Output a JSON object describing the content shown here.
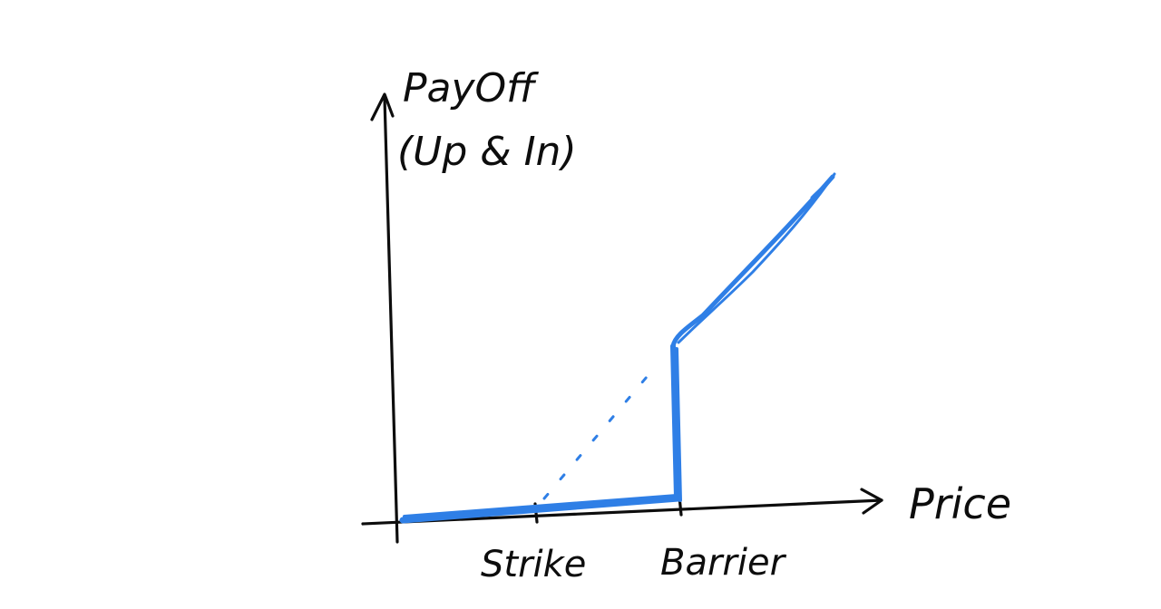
{
  "diagram": {
    "y_axis_label_line1": "PayOff",
    "y_axis_label_line2": "(Up & In)",
    "x_axis_label": "Price",
    "ticks": {
      "strike": "Strike",
      "barrier": "Barrier"
    },
    "colors": {
      "ink": "#0d0d0d",
      "payoff": "#2f7fe6"
    }
  }
}
